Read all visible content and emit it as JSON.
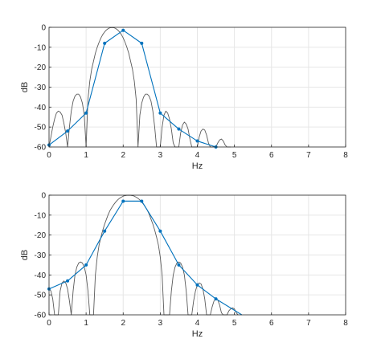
{
  "chart_data": [
    {
      "type": "line",
      "xlabel": "Hz",
      "ylabel": "dB",
      "xlim": [
        0,
        8
      ],
      "ylim": [
        -60,
        0
      ],
      "xticks": [
        "0",
        "1",
        "2",
        "3",
        "4",
        "5",
        "6",
        "7",
        "8"
      ],
      "yticks": [
        "0",
        "-10",
        "-20",
        "-30",
        "-40",
        "-50",
        "-60"
      ],
      "grid": true,
      "series": [
        {
          "color": "#5a5a5a",
          "x": [
            0,
            0.05,
            0.1,
            0.15,
            0.2,
            0.25,
            0.3,
            0.35,
            0.4,
            0.45,
            0.5,
            0.55,
            0.6,
            0.65,
            0.7,
            0.75,
            0.8,
            0.85,
            0.9,
            0.95,
            1.0,
            1.05,
            1.1,
            1.15,
            1.2,
            1.25,
            1.3,
            1.35,
            1.4,
            1.45,
            1.5,
            1.55,
            1.6,
            1.65,
            1.7,
            1.75,
            1.8,
            1.85,
            1.9,
            1.95,
            2.0,
            2.05,
            2.1,
            2.15,
            2.2,
            2.25,
            2.3,
            2.35,
            2.4,
            2.45,
            2.5,
            2.55,
            2.6,
            2.65,
            2.7,
            2.75,
            2.8,
            2.85,
            2.9,
            2.95,
            3.0,
            3.05,
            3.1,
            3.15,
            3.2,
            3.25,
            3.3,
            3.35,
            3.4,
            3.45,
            3.5,
            3.55,
            3.6,
            3.65,
            3.7,
            3.75,
            3.8,
            3.85,
            3.9,
            3.95,
            4.0,
            4.05,
            4.1,
            4.15,
            4.2,
            4.25,
            4.3,
            4.35,
            4.4,
            4.45,
            4.5,
            4.55,
            4.6,
            4.65,
            4.7,
            4.75,
            4.8,
            4.85,
            4.9
          ],
          "y": [
            -60,
            -55,
            -50,
            -46,
            -43,
            -42,
            -42.5,
            -44,
            -48,
            -53,
            -60,
            -50,
            -42,
            -37,
            -34.5,
            -33.5,
            -33.5,
            -35,
            -38,
            -44,
            -60,
            -36,
            -27,
            -21,
            -17,
            -13,
            -10,
            -7.5,
            -5.3,
            -3.6,
            -2.3,
            -1.3,
            -0.6,
            -0.2,
            -0.1,
            -0.2,
            -0.6,
            -1.3,
            -2.3,
            -3.6,
            -5.3,
            -7.5,
            -10,
            -13,
            -17,
            -21,
            -27,
            -36,
            -60,
            -44,
            -38,
            -35,
            -33.5,
            -33.5,
            -34.5,
            -37,
            -42,
            -50,
            -60,
            -60,
            -60,
            -50,
            -44,
            -42,
            -43,
            -46,
            -51,
            -58,
            -60,
            -60,
            -60,
            -53,
            -49,
            -47.5,
            -48.5,
            -51,
            -56,
            -60,
            -60,
            -60,
            -60,
            -55,
            -52,
            -51,
            -51.5,
            -54,
            -58,
            -60,
            -60,
            -60,
            -60,
            -58,
            -56.5,
            -56,
            -57,
            -59,
            -60,
            -60,
            -60
          ]
        },
        {
          "color": "#0072bd",
          "marker": "dot",
          "x": [
            0,
            0.5,
            1,
            1.5,
            2,
            2.5,
            3,
            3.5,
            4,
            4.5
          ],
          "y": [
            -59,
            -52,
            -43,
            -8,
            -1.5,
            -8,
            -43,
            -51,
            -57,
            -60
          ]
        }
      ]
    },
    {
      "type": "line",
      "xlabel": "Hz",
      "ylabel": "dB",
      "xlim": [
        0,
        8
      ],
      "ylim": [
        -60,
        0
      ],
      "xticks": [
        "0",
        "1",
        "2",
        "3",
        "4",
        "5",
        "6",
        "7",
        "8"
      ],
      "yticks": [
        "0",
        "-10",
        "-20",
        "-30",
        "-40",
        "-50",
        "-60"
      ],
      "grid": true,
      "series": [
        {
          "color": "#5a5a5a",
          "x": [
            0,
            0.05,
            0.1,
            0.15,
            0.2,
            0.25,
            0.3,
            0.35,
            0.4,
            0.45,
            0.5,
            0.55,
            0.6,
            0.65,
            0.7,
            0.75,
            0.8,
            0.85,
            0.9,
            0.95,
            1.0,
            1.05,
            1.1,
            1.15,
            1.2,
            1.25,
            1.3,
            1.35,
            1.4,
            1.45,
            1.5,
            1.55,
            1.6,
            1.65,
            1.7,
            1.75,
            1.8,
            1.85,
            1.9,
            1.95,
            2.0,
            2.05,
            2.1,
            2.15,
            2.2,
            2.25,
            2.3,
            2.35,
            2.4,
            2.45,
            2.5,
            2.55,
            2.6,
            2.65,
            2.7,
            2.75,
            2.8,
            2.85,
            2.9,
            2.95,
            3.0,
            3.05,
            3.1,
            3.15,
            3.2,
            3.25,
            3.3,
            3.35,
            3.4,
            3.45,
            3.5,
            3.55,
            3.6,
            3.65,
            3.7,
            3.75,
            3.8,
            3.85,
            3.9,
            3.95,
            4.0,
            4.05,
            4.1,
            4.15,
            4.2,
            4.25,
            4.3,
            4.35,
            4.4,
            4.45,
            4.5,
            4.55,
            4.6,
            4.65,
            4.7,
            4.75,
            4.8,
            4.85,
            4.9,
            4.95,
            5.0,
            5.05,
            5.1
          ],
          "y": [
            -47,
            -48,
            -52,
            -60,
            -60,
            -60,
            -48,
            -44,
            -43,
            -44,
            -47,
            -53,
            -60,
            -48,
            -40,
            -36,
            -34,
            -33.5,
            -34,
            -36,
            -40,
            -48,
            -60,
            -60,
            -60,
            -40,
            -31,
            -25,
            -21,
            -17.5,
            -14.5,
            -12,
            -9.5,
            -7.5,
            -6,
            -4.6,
            -3.4,
            -2.4,
            -1.6,
            -1,
            -0.5,
            -0.2,
            -0.05,
            0,
            -0.05,
            -0.2,
            -0.5,
            -1,
            -1.6,
            -2.4,
            -3.4,
            -4.6,
            -6,
            -7.5,
            -9.5,
            -12,
            -14.5,
            -17.5,
            -21,
            -25,
            -31,
            -40,
            -60,
            -60,
            -60,
            -60,
            -48,
            -40,
            -36,
            -34,
            -33.5,
            -34,
            -36,
            -40,
            -48,
            -60,
            -60,
            -60,
            -53,
            -48,
            -45,
            -44,
            -44.5,
            -47,
            -52,
            -60,
            -60,
            -60,
            -56,
            -53,
            -52,
            -52.5,
            -55,
            -59,
            -60,
            -60,
            -60,
            -58,
            -57,
            -56.5,
            -57,
            -59,
            -60
          ]
        },
        {
          "color": "#0072bd",
          "marker": "dot",
          "x": [
            0,
            0.5,
            1,
            1.5,
            2,
            2.5,
            3,
            3.5,
            4,
            4.5
          ],
          "y": [
            -47,
            -43,
            -35,
            -18,
            -3,
            -3,
            -18,
            -35,
            -45,
            -52
          ]
        },
        {
          "color": "#0072bd",
          "x": [
            2,
            2.5
          ],
          "y": [
            -3,
            -3
          ]
        },
        {
          "color": "#0072bd",
          "x": [
            4.5,
            5.2
          ],
          "y": [
            -52,
            -60
          ]
        }
      ]
    }
  ]
}
